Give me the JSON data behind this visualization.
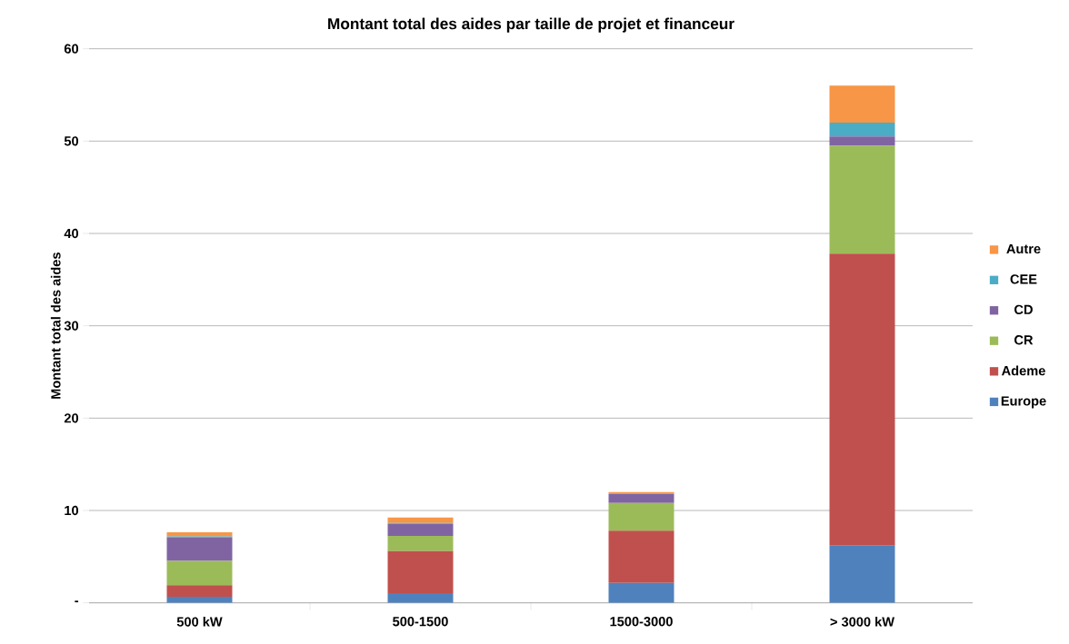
{
  "chart_data": {
    "type": "bar",
    "stacked": true,
    "title": "Montant total des aides par taille de projet et financeur",
    "ylabel": "Montant total des aides",
    "categories": [
      "500 kW",
      "500-1500",
      "1500-3000",
      "> 3000 kW"
    ],
    "series": [
      {
        "name": "Europe",
        "color": "#4f81bd",
        "values": [
          0.65,
          1.05,
          2.15,
          6.2
        ]
      },
      {
        "name": "Ademe",
        "color": "#c0504d",
        "values": [
          1.25,
          4.55,
          5.65,
          31.6
        ]
      },
      {
        "name": "CR",
        "color": "#9bbb59",
        "values": [
          2.65,
          1.65,
          3.0,
          11.7
        ]
      },
      {
        "name": "CD",
        "color": "#8064a2",
        "values": [
          2.55,
          1.3,
          1.0,
          1.0
        ]
      },
      {
        "name": "CEE",
        "color": "#4bacc6",
        "values": [
          0.1,
          0.1,
          0.05,
          1.5
        ]
      },
      {
        "name": "Autre",
        "color": "#f79646",
        "values": [
          0.45,
          0.6,
          0.15,
          4.0
        ]
      }
    ],
    "ylim": [
      0,
      60
    ],
    "yticks": [
      {
        "value": 0,
        "label": "-"
      },
      10,
      20,
      30,
      40,
      50,
      60
    ],
    "grid": "y",
    "legend": "right"
  }
}
